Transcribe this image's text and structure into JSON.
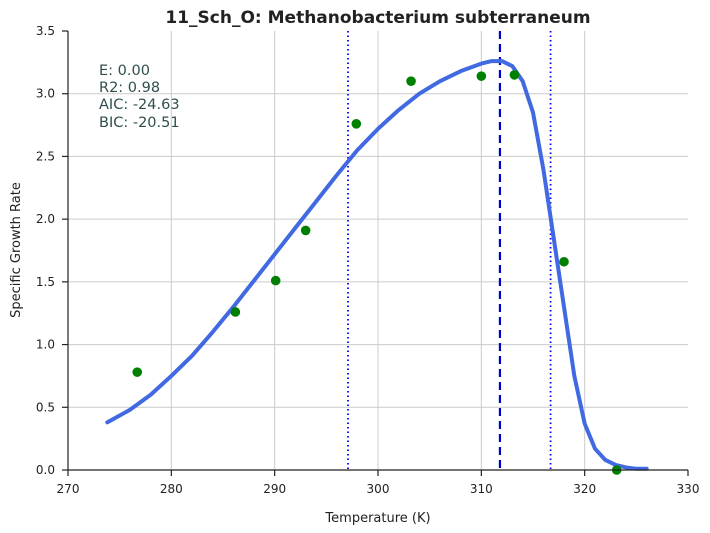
{
  "chart_data": {
    "type": "scatter",
    "title": "11_Sch_O: Methanobacterium subterraneum",
    "xlabel": "Temperature (K)",
    "ylabel": "Specific Growth Rate",
    "xlim": [
      270,
      330
    ],
    "ylim": [
      0.0,
      3.5
    ],
    "xticks": [
      "270",
      "280",
      "290",
      "300",
      "310",
      "320",
      "330"
    ],
    "yticks": [
      "0.0",
      "0.5",
      "1.0",
      "1.5",
      "2.0",
      "2.5",
      "3.0",
      "3.5"
    ],
    "grid": true,
    "annotations": [
      "E:  0.00",
      "R2:  0.98",
      "AIC: -24.63",
      "BIC: -20.51"
    ],
    "points": {
      "color": "#008000",
      "x": [
        276.7,
        286.2,
        290.1,
        293.0,
        297.9,
        303.2,
        310.0,
        313.2,
        318.0,
        323.1
      ],
      "y": [
        0.78,
        1.26,
        1.51,
        1.91,
        2.76,
        3.1,
        3.14,
        3.15,
        1.66,
        0.0
      ]
    },
    "fit_curve": {
      "color": "#4169e1",
      "x": [
        273.8,
        276,
        278,
        280,
        282,
        284,
        286,
        288,
        290,
        292,
        294,
        296,
        298,
        300,
        302,
        304,
        306,
        308,
        310,
        311,
        312,
        313,
        314,
        315,
        316,
        317,
        318,
        319,
        320,
        321,
        322,
        323,
        324,
        325,
        326
      ],
      "y": [
        0.38,
        0.48,
        0.6,
        0.75,
        0.91,
        1.1,
        1.3,
        1.51,
        1.72,
        1.93,
        2.14,
        2.35,
        2.55,
        2.72,
        2.87,
        3.0,
        3.1,
        3.18,
        3.24,
        3.26,
        3.26,
        3.22,
        3.1,
        2.85,
        2.4,
        1.85,
        1.3,
        0.75,
        0.37,
        0.17,
        0.08,
        0.04,
        0.02,
        0.01,
        0.01
      ]
    },
    "vlines": [
      {
        "x": 297.1,
        "style": "dotted",
        "color": "#0000ff"
      },
      {
        "x": 311.8,
        "style": "dashed",
        "color": "#0000cd"
      },
      {
        "x": 316.7,
        "style": "dotted",
        "color": "#0000ff"
      }
    ]
  }
}
